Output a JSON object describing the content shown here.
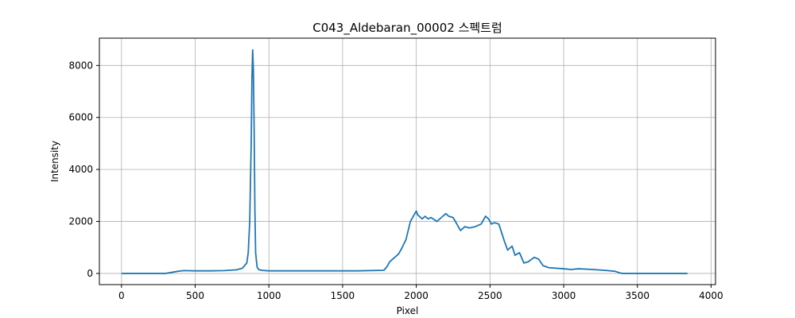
{
  "chart_data": {
    "type": "line",
    "title": "C043_Aldebaran_00002 스펙트럼",
    "xlabel": "Pixel",
    "ylabel": "Intensity",
    "xlim": [
      -150,
      4030
    ],
    "ylim": [
      -430,
      9050
    ],
    "xticks": [
      0,
      500,
      1000,
      1500,
      2000,
      2500,
      3000,
      3500,
      4000
    ],
    "yticks": [
      0,
      2000,
      4000,
      6000,
      8000
    ],
    "grid": true,
    "series": [
      {
        "color": "#1f77b4",
        "x": [
          0,
          300,
          380,
          420,
          500,
          600,
          700,
          780,
          820,
          850,
          860,
          870,
          880,
          885,
          890,
          895,
          900,
          905,
          910,
          920,
          930,
          950,
          1000,
          1200,
          1400,
          1600,
          1780,
          1800,
          1820,
          1850,
          1880,
          1900,
          1930,
          1960,
          1990,
          2000,
          2010,
          2040,
          2060,
          2080,
          2100,
          2140,
          2180,
          2200,
          2220,
          2250,
          2300,
          2330,
          2360,
          2400,
          2440,
          2470,
          2490,
          2510,
          2530,
          2560,
          2600,
          2620,
          2650,
          2670,
          2700,
          2730,
          2760,
          2800,
          2830,
          2860,
          2900,
          3000,
          3050,
          3100,
          3200,
          3300,
          3350,
          3380,
          3400,
          3840
        ],
        "y": [
          0,
          0,
          80,
          110,
          100,
          100,
          110,
          140,
          200,
          400,
          800,
          2000,
          5000,
          7500,
          8600,
          7800,
          5500,
          2500,
          800,
          250,
          150,
          120,
          100,
          100,
          100,
          100,
          120,
          250,
          450,
          600,
          750,
          950,
          1300,
          2000,
          2300,
          2400,
          2250,
          2100,
          2200,
          2100,
          2150,
          2000,
          2200,
          2300,
          2200,
          2150,
          1650,
          1800,
          1750,
          1800,
          1900,
          2200,
          2100,
          1900,
          1950,
          1900,
          1200,
          900,
          1050,
          700,
          800,
          400,
          450,
          620,
          550,
          300,
          220,
          180,
          150,
          180,
          150,
          110,
          80,
          20,
          0,
          0
        ]
      }
    ]
  }
}
